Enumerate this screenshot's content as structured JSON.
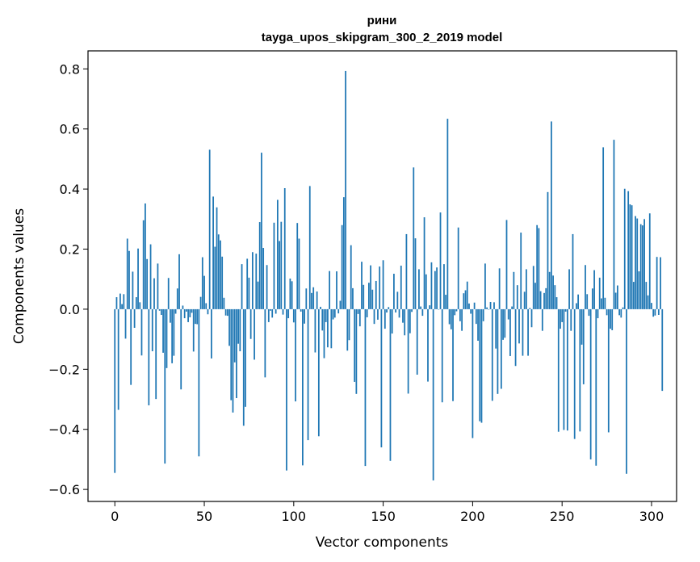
{
  "chart_data": {
    "type": "bar",
    "title": "рини",
    "subtitle": "tayga_upos_skipgram_300_2_2019 model",
    "xlabel": "Vector components",
    "ylabel": "Components values",
    "xlim": [
      -15,
      314
    ],
    "ylim": [
      -0.64,
      0.86
    ],
    "xticks": [
      0,
      50,
      100,
      150,
      200,
      250,
      300
    ],
    "yticks": [
      -0.6,
      -0.4,
      -0.2,
      0.0,
      0.2,
      0.4,
      0.6,
      0.8
    ],
    "xtick_labels": [
      "0",
      "50",
      "100",
      "150",
      "200",
      "250",
      "300"
    ],
    "ytick_labels": [
      "−0.6",
      "−0.4",
      "−0.2",
      "0.0",
      "0.2",
      "0.4",
      "0.6",
      "0.8"
    ],
    "grid": false,
    "bar_color": "#1f77b4",
    "values": [
      -0.545,
      0.04,
      -0.335,
      0.052,
      0.017,
      0.05,
      -0.098,
      0.235,
      0.194,
      -0.252,
      0.125,
      -0.062,
      0.04,
      0.202,
      0.023,
      -0.154,
      0.296,
      0.352,
      0.167,
      -0.32,
      0.216,
      -0.14,
      0.103,
      -0.299,
      0.152,
      -0.005,
      -0.019,
      -0.145,
      -0.514,
      -0.196,
      0.104,
      -0.045,
      -0.18,
      -0.155,
      -0.015,
      0.069,
      0.183,
      -0.267,
      0.012,
      -0.03,
      -0.008,
      -0.043,
      -0.027,
      -0.012,
      -0.141,
      -0.049,
      -0.05,
      -0.49,
      0.041,
      0.173,
      0.111,
      0.02,
      -0.017,
      0.531,
      -0.164,
      0.375,
      0.208,
      0.339,
      0.249,
      0.229,
      0.175,
      0.038,
      -0.021,
      -0.022,
      -0.122,
      -0.303,
      -0.344,
      -0.177,
      -0.296,
      -0.115,
      -0.14,
      0.15,
      -0.388,
      -0.325,
      0.168,
      0.105,
      -0.099,
      0.19,
      -0.168,
      0.185,
      0.092,
      0.29,
      0.521,
      0.204,
      -0.227,
      0.147,
      -0.043,
      -0.005,
      -0.028,
      0.288,
      -0.015,
      0.364,
      0.227,
      0.291,
      -0.018,
      0.403,
      -0.537,
      -0.03,
      0.102,
      0.093,
      -0.044,
      -0.307,
      0.287,
      0.235,
      -0.008,
      -0.52,
      -0.048,
      0.069,
      -0.436,
      0.41,
      0.054,
      0.073,
      -0.144,
      0.059,
      -0.423,
      0.008,
      -0.071,
      -0.163,
      -0.043,
      -0.127,
      0.127,
      -0.13,
      -0.034,
      -0.028,
      0.126,
      -0.014,
      0.028,
      0.28,
      0.373,
      0.793,
      -0.138,
      -0.103,
      0.213,
      0.07,
      -0.242,
      -0.282,
      -0.016,
      -0.057,
      0.158,
      0.081,
      -0.522,
      -0.027,
      0.088,
      0.146,
      0.065,
      -0.049,
      0.094,
      -0.035,
      0.142,
      -0.46,
      0.163,
      -0.065,
      -0.011,
      0.007,
      -0.505,
      -0.081,
      0.118,
      -0.011,
      0.058,
      -0.028,
      0.145,
      -0.045,
      -0.087,
      0.25,
      -0.281,
      -0.08,
      -0.009,
      0.472,
      0.236,
      -0.218,
      0.133,
      0.009,
      -0.022,
      0.306,
      0.116,
      -0.241,
      0.013,
      0.156,
      -0.57,
      0.127,
      0.139,
      -0.001,
      0.322,
      -0.31,
      0.15,
      0.048,
      0.634,
      -0.05,
      -0.067,
      -0.306,
      -0.02,
      -0.007,
      0.272,
      -0.04,
      -0.072,
      0.053,
      0.063,
      0.092,
      0.019,
      -0.015,
      -0.429,
      0.022,
      -0.049,
      -0.105,
      -0.373,
      -0.378,
      -0.04,
      0.152,
      0.006,
      -0.001,
      0.024,
      -0.305,
      0.023,
      -0.131,
      -0.282,
      0.136,
      -0.265,
      -0.102,
      -0.095,
      0.297,
      -0.034,
      -0.156,
      0.009,
      0.124,
      -0.189,
      0.08,
      -0.114,
      0.255,
      -0.155,
      0.058,
      0.133,
      -0.155,
      0.004,
      -0.06,
      0.144,
      0.088,
      0.28,
      0.27,
      0.06,
      -0.072,
      0.054,
      0.07,
      0.39,
      0.124,
      0.625,
      0.112,
      0.08,
      0.04,
      -0.408,
      -0.065,
      -0.043,
      -0.402,
      -0.008,
      -0.404,
      0.133,
      -0.072,
      0.25,
      -0.432,
      0.02,
      0.049,
      -0.407,
      -0.118,
      -0.25,
      0.147,
      0.05,
      -0.022,
      -0.5,
      0.069,
      0.13,
      -0.521,
      -0.03,
      0.105,
      0.036,
      0.539,
      0.038,
      -0.02,
      -0.41,
      -0.065,
      -0.07,
      0.564,
      0.055,
      0.079,
      -0.02,
      -0.028,
      0.006,
      0.401,
      -0.548,
      0.393,
      0.349,
      0.346,
      0.091,
      0.31,
      0.302,
      0.126,
      0.283,
      0.279,
      0.3,
      0.091,
      0.046,
      0.319,
      0.021,
      -0.025,
      -0.021,
      0.174,
      -0.019,
      0.173,
      -0.272
    ]
  }
}
